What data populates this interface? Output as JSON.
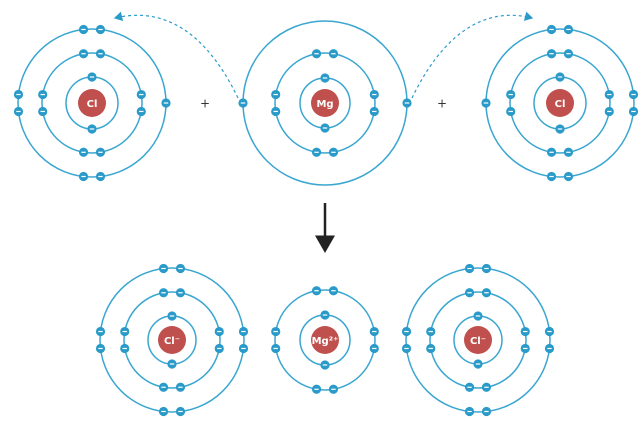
{
  "reactants": [
    {
      "label": "Cl"
    },
    {
      "label": "Mg"
    },
    {
      "label": "Cl"
    }
  ],
  "plus_signs": [
    "+",
    "+"
  ],
  "products": [
    {
      "label": "Cl⁻"
    },
    {
      "label": "Mg²⁺"
    },
    {
      "label": "Cl⁻"
    }
  ]
}
